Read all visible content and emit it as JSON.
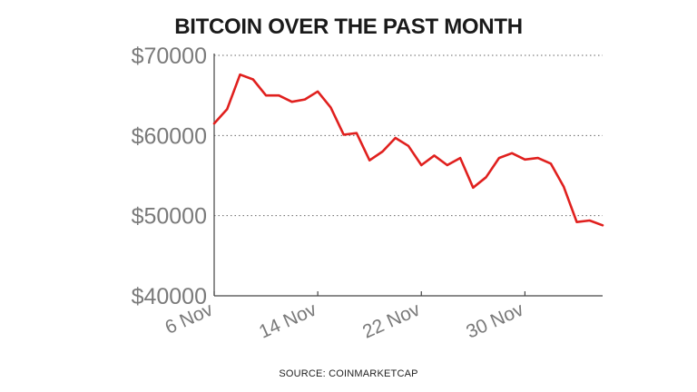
{
  "chart_data": {
    "type": "line",
    "title": "BITCOIN OVER THE PAST MONTH",
    "source": "SOURCE: COINMARKETCAP",
    "xlabel": "",
    "ylabel": "",
    "y_ticks": [
      40000,
      50000,
      60000,
      70000
    ],
    "y_tick_labels": [
      "$40000",
      "$50000",
      "$60000",
      "$70000"
    ],
    "ylim": [
      40000,
      70000
    ],
    "x_ticks": [
      0,
      8,
      16,
      24
    ],
    "x_tick_labels": [
      "6 Nov",
      "14 Nov",
      "22 Nov",
      "30 Nov"
    ],
    "xlim": [
      0,
      30
    ],
    "grid": "horizontal dotted",
    "line_color": "#e0201e",
    "series": [
      {
        "x": [
          "6 Nov",
          "7 Nov",
          "8 Nov",
          "9 Nov",
          "10 Nov",
          "11 Nov",
          "12 Nov",
          "13 Nov",
          "14 Nov",
          "15 Nov",
          "16 Nov",
          "17 Nov",
          "18 Nov",
          "19 Nov",
          "20 Nov",
          "21 Nov",
          "22 Nov",
          "23 Nov",
          "24 Nov",
          "25 Nov",
          "26 Nov",
          "27 Nov",
          "28 Nov",
          "29 Nov",
          "30 Nov",
          "1 Dec",
          "2 Dec",
          "3 Dec",
          "4 Dec",
          "5 Dec",
          "6 Dec"
        ],
        "values": [
          61500,
          63300,
          67600,
          67000,
          65000,
          65000,
          64200,
          64500,
          65500,
          63500,
          60100,
          60300,
          56900,
          58000,
          59700,
          58700,
          56300,
          57500,
          56300,
          57200,
          53500,
          54800,
          57200,
          57800,
          57000,
          57200,
          56500,
          53600,
          49200,
          49400,
          48800
        ]
      }
    ]
  }
}
